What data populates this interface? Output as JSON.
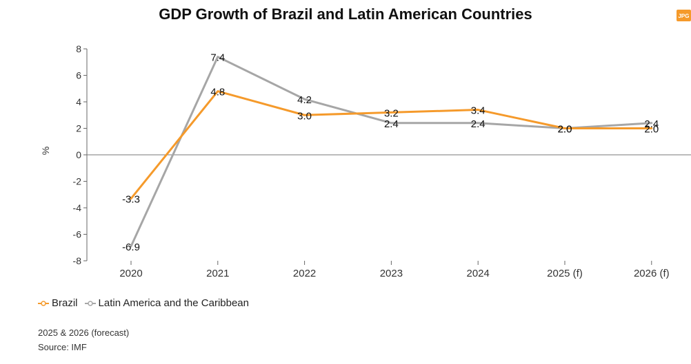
{
  "title": "GDP Growth of Brazil and Latin American Countries",
  "logo_text": "JPG",
  "notes": {
    "forecast": "2025 & 2026 (forecast)",
    "source": "Source: IMF"
  },
  "colors": {
    "brazil": "#f59a2b",
    "latam": "#a6a6a6",
    "logo": "#f59a2b"
  },
  "chart_data": {
    "type": "line",
    "title": "GDP Growth of Brazil and Latin American Countries",
    "xlabel": "",
    "ylabel": "%",
    "categories": [
      "2020",
      "2021",
      "2022",
      "2023",
      "2024",
      "2025 (f)",
      "2026 (f)"
    ],
    "ylim": [
      -8,
      8
    ],
    "yticks": [
      "8",
      "6",
      "4",
      "2",
      "0",
      "-2",
      "-4",
      "-6",
      "-8"
    ],
    "grid": false,
    "legend_position": "bottom-left",
    "series": [
      {
        "name": "Brazil",
        "values": [
          -3.3,
          4.8,
          3.0,
          3.2,
          3.4,
          2.0,
          2.0
        ],
        "labels": [
          "-3.3",
          "4.8",
          "3.0",
          "3.2",
          "3.4",
          "2.0",
          "2.0"
        ]
      },
      {
        "name": "Latin America and the Caribbean",
        "values": [
          -6.9,
          7.4,
          4.2,
          2.4,
          2.4,
          2.0,
          2.4
        ],
        "labels": [
          "-6.9",
          "7.4",
          "4.2",
          "2.4",
          "2.4",
          "2.0",
          "2.4"
        ]
      }
    ]
  }
}
